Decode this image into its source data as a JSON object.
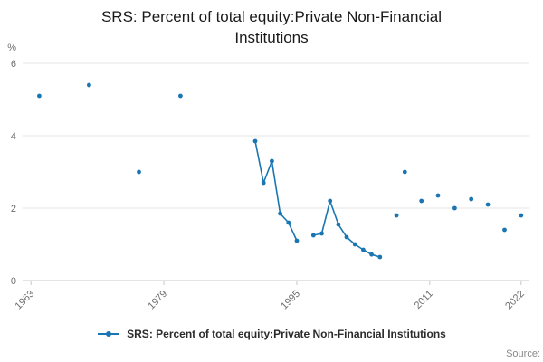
{
  "chart_data": {
    "type": "line",
    "title": "SRS: Percent of total equity:Private Non-Financial Institutions",
    "xlabel": "",
    "ylabel": "%",
    "xlim": [
      1962,
      2023
    ],
    "ylim": [
      0,
      6
    ],
    "xticks": [
      1963,
      1979,
      1995,
      2011,
      2022
    ],
    "yticks": [
      0,
      2,
      4,
      6
    ],
    "grid": "horizontal",
    "legend_position": "bottom",
    "series": [
      {
        "name": "SRS: Percent of total equity:Private Non-Financial Institutions",
        "color": "#1976b2",
        "points": [
          [
            1964,
            5.1
          ],
          null,
          [
            1970,
            5.4
          ],
          null,
          [
            1976,
            3.0
          ],
          null,
          [
            1981,
            5.1
          ],
          null,
          [
            1990,
            3.85
          ],
          [
            1991,
            2.7
          ],
          [
            1992,
            3.3
          ],
          [
            1993,
            1.85
          ],
          [
            1994,
            1.6
          ],
          [
            1995,
            1.1
          ],
          null,
          [
            1997,
            1.25
          ],
          [
            1998,
            1.3
          ],
          [
            1999,
            2.2
          ],
          [
            2000,
            1.55
          ],
          [
            2001,
            1.2
          ],
          [
            2002,
            1.0
          ],
          [
            2003,
            0.85
          ],
          [
            2004,
            0.72
          ],
          [
            2005,
            0.65
          ],
          null,
          [
            2007,
            1.8
          ],
          null,
          [
            2008,
            3.0
          ],
          null,
          [
            2010,
            2.2
          ],
          null,
          [
            2012,
            2.35
          ],
          null,
          [
            2014,
            2.0
          ],
          null,
          [
            2016,
            2.25
          ],
          null,
          [
            2018,
            2.1
          ],
          null,
          [
            2020,
            1.4
          ],
          null,
          [
            2022,
            1.8
          ]
        ]
      }
    ]
  },
  "legend": {
    "label": "SRS: Percent of total equity:Private Non-Financial Institutions"
  },
  "footer": {
    "source_label": "Source:"
  }
}
